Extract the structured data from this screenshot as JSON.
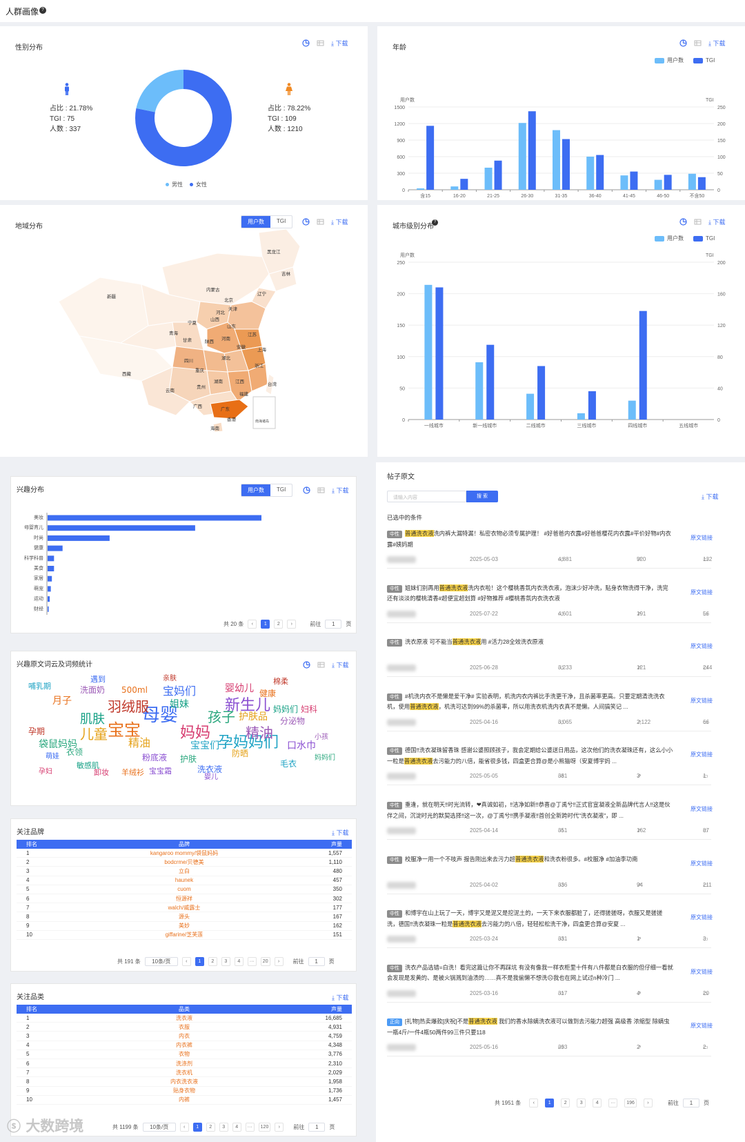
{
  "page": {
    "title": "人群画像"
  },
  "common": {
    "download": "下载"
  },
  "gender": {
    "title": "性别分布",
    "male": {
      "share": "占比 : 21.78%",
      "tgi": "TGI : 75",
      "count": "人数 : 337",
      "color": "#6cbdfa"
    },
    "female": {
      "share": "占比 : 78.22%",
      "tgi": "TGI : 109",
      "count": "人数 : 1210",
      "color": "#3d6df2"
    },
    "legend": [
      "男性",
      "女性"
    ]
  },
  "age": {
    "title": "年龄",
    "legend": [
      "用户数",
      "TGI"
    ],
    "chart_data": {
      "type": "bar",
      "categories": [
        "含15",
        "16-20",
        "21-25",
        "26-30",
        "31-35",
        "36-40",
        "41-45",
        "46-50",
        "不含50"
      ],
      "ylabel": "用户数",
      "y2label": "TGI",
      "ylim": [
        0,
        1500
      ],
      "y2lim": [
        0,
        250
      ],
      "yticks": [
        "0",
        "300",
        "600",
        "900",
        "1200",
        "1500"
      ],
      "y2ticks": [
        "0",
        "50",
        "100",
        "150",
        "200",
        "250"
      ],
      "series": [
        {
          "name": "用户数",
          "values": [
            25,
            60,
            400,
            1210,
            1080,
            600,
            260,
            180,
            290
          ],
          "color": "#6cbdfa"
        },
        {
          "name": "TGI",
          "values": [
            193,
            33,
            88,
            237,
            153,
            105,
            55,
            45,
            38
          ],
          "color": "#3d6df2"
        }
      ]
    }
  },
  "region": {
    "title": "地域分布",
    "tabs": [
      "用户数",
      "TGI"
    ],
    "legend": {
      "low": "低",
      "high": "高",
      "min": "1",
      "max": "926"
    },
    "inset": "南海诸岛",
    "provinces": [
      "黑龙江",
      "吉林",
      "辽宁",
      "内蒙古",
      "北京",
      "天津",
      "河北",
      "山西",
      "山东",
      "新疆",
      "宁夏",
      "青海",
      "甘肃",
      "陕西",
      "河南",
      "江苏",
      "安徽",
      "上海",
      "湖北",
      "四川",
      "重庆",
      "浙江",
      "西藏",
      "湖南",
      "江西",
      "贵州",
      "福建",
      "云南",
      "台湾",
      "广西",
      "广东",
      "香港",
      "海南"
    ]
  },
  "city": {
    "title": "城市级别分布",
    "legend": [
      "用户数",
      "TGI"
    ],
    "chart_data": {
      "type": "bar",
      "categories": [
        "一线城市",
        "新一线城市",
        "二线城市",
        "三线城市",
        "四线城市",
        "五线城市"
      ],
      "ylabel": "用户数",
      "y2label": "TGI",
      "ylim": [
        0,
        250
      ],
      "y2lim": [
        0,
        200
      ],
      "yticks": [
        "0",
        "50",
        "100",
        "150",
        "200",
        "250"
      ],
      "y2ticks": [
        "0",
        "40",
        "80",
        "120",
        "160",
        "200"
      ],
      "series": [
        {
          "name": "用户数",
          "values": [
            214,
            91,
            41,
            10,
            30,
            0
          ],
          "color": "#6cbdfa"
        },
        {
          "name": "TGI",
          "values": [
            168,
            95,
            68,
            36,
            138,
            0
          ],
          "color": "#3d6df2"
        }
      ]
    }
  },
  "interest": {
    "title": "兴趣分布",
    "tabs": [
      "用户数",
      "TGI"
    ],
    "chart_data": {
      "type": "bar",
      "orientation": "horizontal",
      "categories": [
        "美妆",
        "母婴育儿",
        "时尚",
        "健康",
        "科学科普",
        "美食",
        "家居",
        "萌宠",
        "运动",
        "财经"
      ],
      "series": [
        {
          "name": "用户数",
          "values": [
            100,
            69,
            29,
            7,
            3,
            3,
            2,
            1.5,
            1,
            0.5
          ]
        }
      ]
    },
    "pager": {
      "total": "共 20 条",
      "pages": [
        "1",
        "2"
      ],
      "goto": "前往",
      "page": "页",
      "current": "1"
    }
  },
  "wordcloud": {
    "title": "兴趣原文词云及词频统计",
    "words": [
      "母婴",
      "宝宝",
      "妈妈",
      "孩子",
      "新生儿",
      "儿童",
      "孕妈妈们",
      "羽绒服",
      "肌肤",
      "精油",
      "宝妈们",
      "月子",
      "婴幼儿",
      "袋鼠妈妈",
      "口水巾",
      "精油",
      "宝宝们",
      "孕期",
      "妈妈们",
      "分泌物",
      "洗衣液",
      "健康",
      "妇科",
      "衣领",
      "粉底液",
      "护肤品",
      "哺乳期",
      "亲肤",
      "姐妹",
      "洗面奶",
      "遇到",
      "500ml",
      "孕妇",
      "护肤",
      "宝宝霜",
      "防晒",
      "毛衣",
      "棉柔",
      "敏感肌",
      "小孩",
      "萌娃",
      "羊绒衫",
      "卸妆",
      "妈妈们",
      "婴儿"
    ]
  },
  "brands": {
    "title": "关注品牌",
    "headers": [
      "排名",
      "品牌",
      "声量"
    ],
    "rows": [
      [
        "1",
        "kangaroo mommy/袋鼠妈妈",
        "1,557"
      ],
      [
        "2",
        "bodcrme/贝德美",
        "1,110"
      ],
      [
        "3",
        "立白",
        "480"
      ],
      [
        "4",
        "haunek",
        "457"
      ],
      [
        "5",
        "cuom",
        "350"
      ],
      [
        "6",
        "恒源祥",
        "302"
      ],
      [
        "7",
        "walch/威露士",
        "177"
      ],
      [
        "8",
        "源头",
        "167"
      ],
      [
        "9",
        "美妙",
        "162"
      ],
      [
        "10",
        "giffarine/芝芙莲",
        "151"
      ]
    ],
    "pager": {
      "total": "共 191 条",
      "size": "10条/页",
      "pages": [
        "1",
        "2",
        "3",
        "4",
        "···",
        "20"
      ],
      "goto": "前往",
      "page": "页",
      "current": "1"
    }
  },
  "categories": {
    "title": "关注品类",
    "headers": [
      "排名",
      "品类",
      "声量"
    ],
    "rows": [
      [
        "1",
        "洗衣液",
        "16,685"
      ],
      [
        "2",
        "衣服",
        "4,931"
      ],
      [
        "3",
        "内衣",
        "4,759"
      ],
      [
        "4",
        "内衣裤",
        "4,348"
      ],
      [
        "5",
        "衣物",
        "3,776"
      ],
      [
        "6",
        "洗涤剂",
        "2,310"
      ],
      [
        "7",
        "洗衣机",
        "2,029"
      ],
      [
        "8",
        "内衣洗衣液",
        "1,958"
      ],
      [
        "9",
        "贴身衣物",
        "1,736"
      ],
      [
        "10",
        "内裤",
        "1,457"
      ]
    ],
    "pager": {
      "total": "共 1199 条",
      "size": "10条/页",
      "pages": [
        "1",
        "2",
        "3",
        "4",
        "···",
        "120"
      ],
      "goto": "前往",
      "page": "页",
      "current": "1"
    }
  },
  "posts": {
    "title": "帖子原文",
    "search_placeholder": "请输入内容",
    "search_button": "搜 索",
    "selected": "已选中的条件",
    "link": "原文链接",
    "items": [
      {
        "tag": "中性",
        "pre": "",
        "hl": "普通洗衣液",
        "post": "洗内裤大漏特漏！私密衣物必须专属护理！ #好爸爸内衣露#好爸爸樱花内衣露#平价好物#内衣露#姨妈期",
        "date": "2025-05-03",
        "likes": "4,881",
        "shares": "520",
        "comments": "132"
      },
      {
        "tag": "中性",
        "pre": "姐妹们别再用",
        "hl": "普通洗衣液",
        "post": "洗内衣啦！这个樱桃香氛内衣洗衣液，泡沫少好冲洗，贴身衣物洗得干净，洗完还有淡淡的樱桃清香#超便宜超划算 #好物推荐 #樱桃香氛内衣洗衣液",
        "date": "2025-07-22",
        "likes": "4,601",
        "shares": "191",
        "comments": "56"
      },
      {
        "tag": "中性",
        "pre": "洗衣原液 可不能当",
        "hl": "普通洗衣液",
        "post": "用 #活力28全效洗衣原液",
        "date": "2025-06-28",
        "likes": "3,233",
        "shares": "121",
        "comments": "244"
      },
      {
        "tag": "中性",
        "pre": "#机洗内衣不是懒是爱干净# 实验表明，机洗内衣内裤比手洗更干净，且杀菌率更高。只要定期清洗洗衣机，使用",
        "hl": "普通洗衣液",
        "post": "，机洗可达到99%的杀菌率，所以用洗衣机洗内衣真不是懒。人间搞笑记 ...",
        "date": "2025-04-16",
        "likes": "3,065",
        "shares": "2,122",
        "comments": "66"
      },
      {
        "tag": "中性",
        "pre": "德国‼洗衣凝珠留香珠 感谢公婆照顾孩子，我会定期给公婆送日用品，这次他们的洗衣凝珠还有，这么小小一粒是",
        "hl": "普通洗衣液",
        "post": "去污能力的八倍，能省很多钱，四盒更合算@是小熊猫呀（安夏博宇妈 ...",
        "date": "2025-05-05",
        "likes": "381",
        "shares": "3",
        "comments": "1"
      },
      {
        "tag": "中性",
        "pre": "重逢，就在明天‼时光流转，❤真诚如初，‼洁净如新‼恭喜@丁禹兮‼正式官宣凝液全新品牌代言人‼这是伙伴之间，沉淀时光的默契选择‼这一次，@丁禹兮‼携手凝液‼首创全新跨时代\"洗衣凝液\"，即 ...",
        "hl": "",
        "post": "",
        "date": "2025-04-14",
        "likes": "351",
        "shares": "162",
        "comments": "87"
      },
      {
        "tag": "中性",
        "pre": "校服净一用一个不吱声 报告刚出来去污力超",
        "hl": "普通洗衣液",
        "post": "和洗衣粉很多。#校服净 #加油李功南",
        "date": "2025-04-02",
        "likes": "336",
        "shares": "94",
        "comments": "211"
      },
      {
        "tag": "中性",
        "pre": "和博宇在山上玩了一天，博宇又是泥又是挖泥土的，一天下来衣服都脏了，还得搓搓呀，衣服又是搓搓洗，德国‼洗衣凝珠一粒是",
        "hl": "普通洗衣液",
        "post": "去污能力的八倍，轻轻松松洗干净，四盒更合算@安夏 ...",
        "date": "2025-03-24",
        "likes": "331",
        "shares": "1",
        "comments": "3"
      },
      {
        "tag": "中性",
        "pre": "洗衣产品选错=白洗！看完这篇让你不再踩坑 有没有像我一样衣柜里十件有八件都是白衣服的但仔细一看就会发现是发黄的、是被火锅溅到油渍的……真不是我偷懒不想洗☹我也在网上试过n种冷门 ...",
        "hl": "",
        "post": "",
        "date": "2025-03-16",
        "likes": "317",
        "shares": "4",
        "comments": "20"
      },
      {
        "tag": "正向",
        "pre": "[礼物]热卖爆款[庆祝]不是",
        "hl": "普通洗衣液",
        "post": " 我们的香水除螨洗衣液可以做到去污能力超强 高级香 浓缩型 除螨虫 一瓶4斤/一件4瓶50两件99三件只要118",
        "date": "2025-05-16",
        "likes": "293",
        "shares": "2",
        "comments": "2"
      }
    ],
    "pager": {
      "total": "共 1951 条",
      "pages": [
        "1",
        "2",
        "3",
        "4",
        "···",
        "196"
      ],
      "goto": "前往",
      "page": "页",
      "current": "1"
    }
  },
  "watermark": "大数跨境"
}
